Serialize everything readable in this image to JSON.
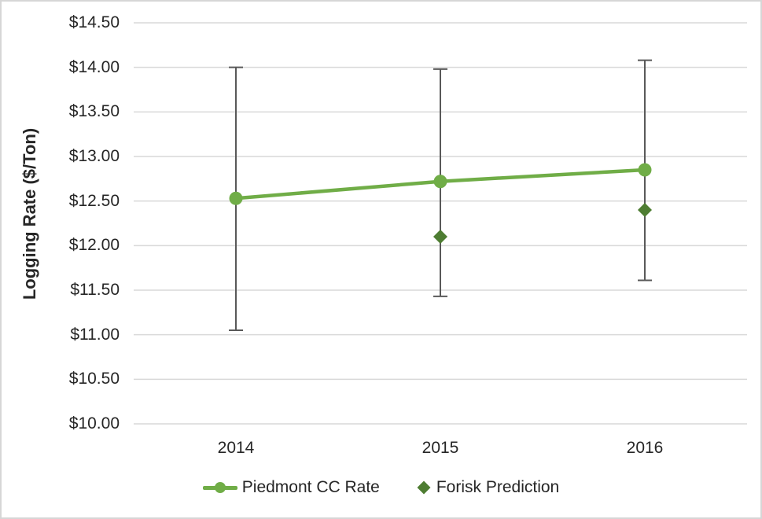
{
  "chart_data": {
    "type": "line",
    "title": "",
    "xlabel": "",
    "ylabel": "Logging Rate ($/Ton)",
    "x_categories": [
      "2014",
      "2015",
      "2016"
    ],
    "ylim": [
      10.0,
      14.5
    ],
    "ytick_step": 0.5,
    "y_ticks": [
      {
        "value": 14.5,
        "label": "$14.50"
      },
      {
        "value": 14.0,
        "label": "$14.00"
      },
      {
        "value": 13.5,
        "label": "$13.50"
      },
      {
        "value": 13.0,
        "label": "$13.00"
      },
      {
        "value": 12.5,
        "label": "$12.50"
      },
      {
        "value": 12.0,
        "label": "$12.00"
      },
      {
        "value": 11.5,
        "label": "$11.50"
      },
      {
        "value": 11.0,
        "label": "$11.00"
      },
      {
        "value": 10.5,
        "label": "$10.50"
      },
      {
        "value": 10.0,
        "label": "$10.00"
      }
    ],
    "grid": "horizontal",
    "legend_position": "bottom",
    "colors": {
      "gridline": "#d9d9d9",
      "error_bar": "#595959",
      "text": "#262626",
      "border": "#d6d6d6"
    },
    "series": [
      {
        "name": "Piedmont CC Rate",
        "marker": "circle",
        "line": true,
        "color": "#70ad47",
        "values": [
          12.53,
          12.72,
          12.85
        ],
        "error_low": [
          11.05,
          11.43,
          11.61
        ],
        "error_high": [
          14.0,
          13.98,
          14.08
        ]
      },
      {
        "name": "Forisk Prediction",
        "marker": "diamond",
        "line": false,
        "color": "#4e7d32",
        "values": [
          null,
          12.1,
          12.4
        ],
        "error_low": [
          null,
          null,
          null
        ],
        "error_high": [
          null,
          null,
          null
        ]
      }
    ]
  }
}
